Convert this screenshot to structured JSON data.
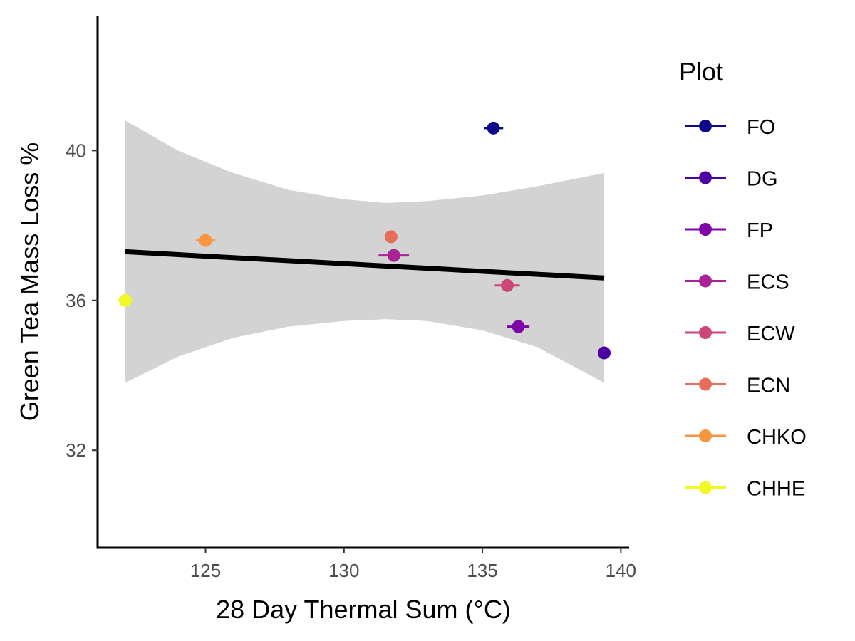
{
  "chart_data": {
    "type": "scatter",
    "xlabel": "28 Day Thermal Sum (°C)",
    "ylabel": "Green Tea Mass Loss %",
    "xlim": [
      121.1,
      140.3
    ],
    "ylim": [
      29.4,
      43.6
    ],
    "x_ticks": [
      125,
      130,
      135,
      140
    ],
    "y_ticks": [
      32,
      36,
      40
    ],
    "grid": false,
    "legend": {
      "title": "Plot",
      "position": "right"
    },
    "series": [
      {
        "name": "FO",
        "color": "#0d0887",
        "x": 135.4,
        "y": 40.6,
        "xerr": 0.35
      },
      {
        "name": "DG",
        "color": "#4c02a1",
        "x": 139.4,
        "y": 34.6,
        "xerr": 0.0
      },
      {
        "name": "FP",
        "color": "#7e03a8",
        "x": 136.3,
        "y": 35.3,
        "xerr": 0.4
      },
      {
        "name": "ECS",
        "color": "#a92395",
        "x": 131.8,
        "y": 37.2,
        "xerr": 0.55
      },
      {
        "name": "ECW",
        "color": "#cc4778",
        "x": 135.9,
        "y": 36.4,
        "xerr": 0.45
      },
      {
        "name": "ECN",
        "color": "#e66c5c",
        "x": 131.7,
        "y": 37.7,
        "xerr": 0.0
      },
      {
        "name": "CHKO",
        "color": "#f89540",
        "x": 125.0,
        "y": 37.6,
        "xerr": 0.35
      },
      {
        "name": "CHHE",
        "color": "#f0f921",
        "x": 122.1,
        "y": 36.0,
        "xerr": 0.25
      }
    ],
    "fit_line": {
      "x": [
        122.1,
        139.4
      ],
      "y": [
        37.3,
        36.6
      ],
      "color": "#000000"
    },
    "confidence_band": {
      "x": [
        122.1,
        124.0,
        126.0,
        128.0,
        130.0,
        131.5,
        133.0,
        135.0,
        137.0,
        139.4
      ],
      "upper": [
        40.8,
        40.0,
        39.4,
        38.95,
        38.7,
        38.6,
        38.65,
        38.8,
        39.05,
        39.4
      ],
      "lower": [
        33.8,
        34.5,
        35.0,
        35.3,
        35.45,
        35.5,
        35.45,
        35.2,
        34.75,
        33.8
      ],
      "color": "#d3d3d3"
    }
  }
}
